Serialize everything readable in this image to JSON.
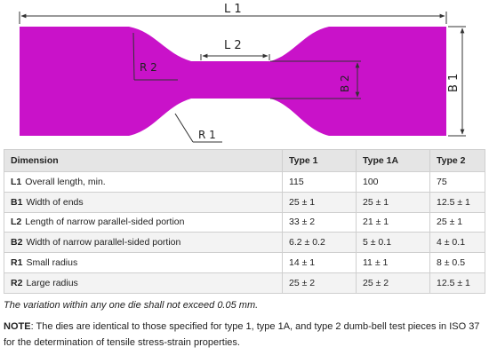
{
  "diagram": {
    "fill_color": "#c912c9",
    "labels": {
      "L1": "L 1",
      "L2": "L 2",
      "B1": "B 1",
      "B2": "B 2",
      "R1": "R 1",
      "R2": "R 2"
    }
  },
  "table": {
    "headers": [
      "Dimension",
      "Type 1",
      "Type 1A",
      "Type 2"
    ],
    "rows": [
      {
        "code": "L1",
        "desc": "Overall length, min.",
        "t1": "115",
        "t1a": "100",
        "t2": "75"
      },
      {
        "code": "B1",
        "desc": "Width of ends",
        "t1": "25 ± 1",
        "t1a": "25 ± 1",
        "t2": "12.5 ± 1"
      },
      {
        "code": "L2",
        "desc": "Length of narrow parallel-sided portion",
        "t1": "33 ± 2",
        "t1a": "21 ± 1",
        "t2": "25 ± 1"
      },
      {
        "code": "B2",
        "desc": "Width of narrow parallel-sided portion",
        "t1": "6.2 ± 0.2",
        "t1a": "5 ± 0.1",
        "t2": "4 ± 0.1"
      },
      {
        "code": "R1",
        "desc": "Small radius",
        "t1": "14 ± 1",
        "t1a": "11 ± 1",
        "t2": "8 ± 0.5"
      },
      {
        "code": "R2",
        "desc": "Large radius",
        "t1": "25 ± 2",
        "t1a": "25 ± 2",
        "t2": "12.5 ± 1"
      }
    ]
  },
  "notes": {
    "variation": "The variation within any one die shall not exceed 0.05 mm.",
    "note_label": "NOTE",
    "note_text": ": The dies are identical to those specified for type 1, type 1A, and type 2 dumb-bell test pieces in ISO 37 for the determination of tensile stress-strain properties."
  }
}
